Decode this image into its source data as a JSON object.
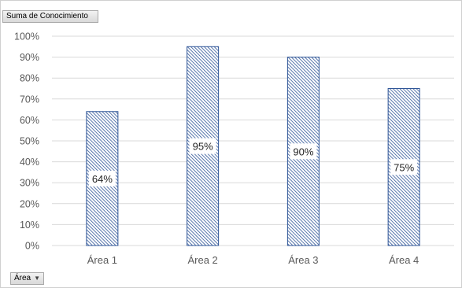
{
  "value_field_button": {
    "label": "Suma de Conocimiento"
  },
  "axis_field_button": {
    "label": "Área",
    "dropdown_icon": "chevron-down-icon"
  },
  "colors": {
    "bar_stroke": "#2f5597",
    "bar_hatch": "#2f5597",
    "gridline": "#d9d9d9",
    "tick_text": "#595959"
  },
  "chart_data": {
    "type": "bar",
    "categories": [
      "Área 1",
      "Área 2",
      "Área 3",
      "Área 4"
    ],
    "values": [
      64,
      95,
      90,
      75
    ],
    "data_labels": [
      "64%",
      "95%",
      "90%",
      "75%"
    ],
    "title": "",
    "xlabel": "",
    "ylabel": "",
    "ylim": [
      0,
      100
    ],
    "yticks": [
      "0%",
      "10%",
      "20%",
      "30%",
      "40%",
      "50%",
      "60%",
      "70%",
      "80%",
      "90%",
      "100%"
    ],
    "grid": true,
    "fill_pattern": "diagonal-hatch"
  }
}
